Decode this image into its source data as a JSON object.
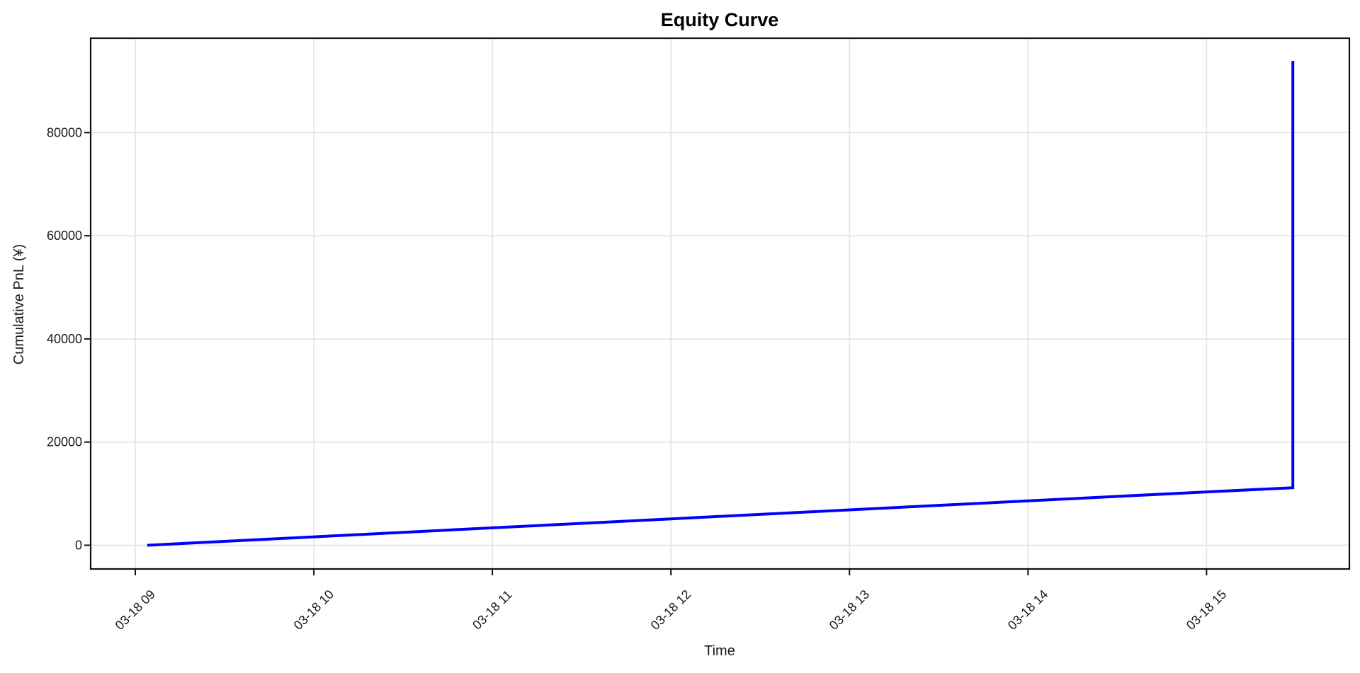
{
  "chart_data": {
    "type": "line",
    "title": "Equity Curve",
    "xlabel": "Time",
    "ylabel": "Cumulative PnL (¥)",
    "grid": true,
    "legend_position": "none",
    "colors": {
      "line": "#0000FF",
      "grid": "#e5e5e5",
      "axis": "#111111",
      "text": "#1a1a1a",
      "title": "#000000",
      "background": "#ffffff"
    },
    "x_domain": [
      "08:45",
      "15:48"
    ],
    "y_domain": [
      -4600,
      98300
    ],
    "x_ticks": [
      {
        "label": "03-18 09",
        "time": "09:00"
      },
      {
        "label": "03-18 10",
        "time": "10:00"
      },
      {
        "label": "03-18 11",
        "time": "11:00"
      },
      {
        "label": "03-18 12",
        "time": "12:00"
      },
      {
        "label": "03-18 13",
        "time": "13:00"
      },
      {
        "label": "03-18 14",
        "time": "14:00"
      },
      {
        "label": "03-18 15",
        "time": "15:00"
      }
    ],
    "y_ticks": [
      {
        "label": "0",
        "value": 0
      },
      {
        "label": "20000",
        "value": 20000
      },
      {
        "label": "40000",
        "value": 40000
      },
      {
        "label": "60000",
        "value": 60000
      },
      {
        "label": "80000",
        "value": 80000
      }
    ],
    "series": [
      {
        "name": "Cumulative PnL",
        "points": [
          {
            "t": "09:04",
            "v": 0
          },
          {
            "t": "10:00",
            "v": 1630
          },
          {
            "t": "11:00",
            "v": 3370
          },
          {
            "t": "12:00",
            "v": 5110
          },
          {
            "t": "13:00",
            "v": 6860
          },
          {
            "t": "14:00",
            "v": 8600
          },
          {
            "t": "15:00",
            "v": 10340
          },
          {
            "t": "15:29",
            "v": 11150
          },
          {
            "t": "15:29",
            "v": 93900
          }
        ]
      }
    ]
  }
}
